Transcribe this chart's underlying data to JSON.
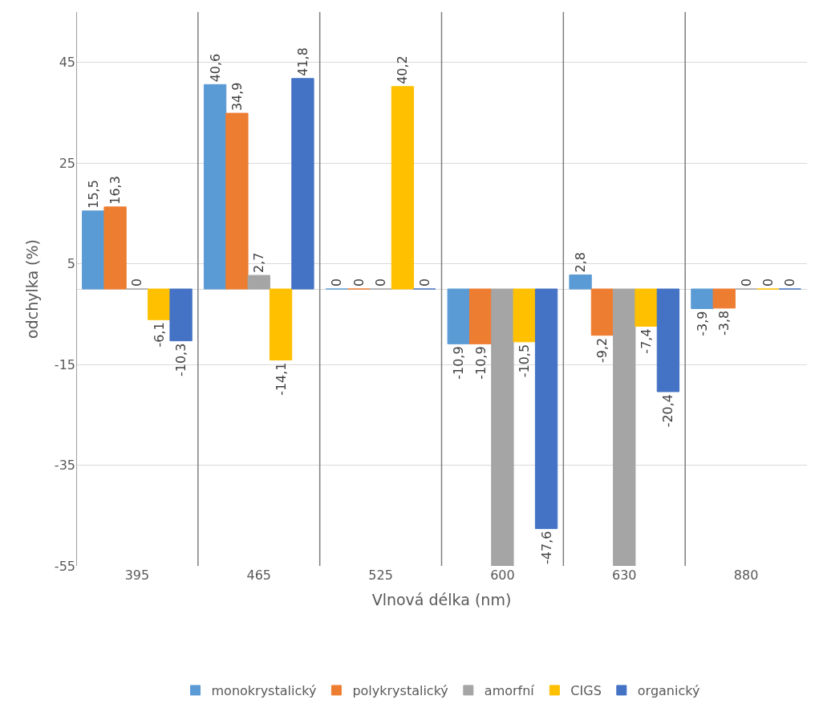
{
  "chart_data": {
    "type": "bar",
    "xlabel": "Vlnová délka (nm)",
    "ylabel": "odchylka (%)",
    "categories": [
      "395",
      "465",
      "525",
      "600",
      "630",
      "880"
    ],
    "series": [
      {
        "name": "monokrystalický",
        "color": "#5b9bd5",
        "values": [
          15.5,
          40.6,
          0,
          -10.9,
          2.8,
          -3.9
        ],
        "value_labels": [
          "15,5",
          "40,6",
          "0",
          "-10,9",
          "2,8",
          "-3,9"
        ]
      },
      {
        "name": "polykrystalický",
        "color": "#ed7d31",
        "values": [
          16.3,
          34.9,
          0,
          -10.9,
          -9.2,
          -3.8
        ],
        "value_labels": [
          "16,3",
          "34,9",
          "0",
          "-10,9",
          "-9,2",
          "-3,8"
        ]
      },
      {
        "name": "amorfní",
        "color": "#a5a5a5",
        "values": [
          0,
          2.7,
          0,
          -55,
          -55,
          0
        ],
        "value_labels": [
          "0",
          "2,7",
          "0",
          null,
          null,
          "0"
        ]
      },
      {
        "name": "CIGS",
        "color": "#ffc000",
        "values": [
          -6.1,
          -14.1,
          40.2,
          -10.5,
          -7.4,
          0
        ],
        "value_labels": [
          "-6,1",
          "-14,1",
          "40,2",
          "-10,5",
          "-7,4",
          "0"
        ]
      },
      {
        "name": "organický",
        "color": "#4472c4",
        "values": [
          -10.3,
          41.8,
          0,
          -47.6,
          -20.4,
          0
        ],
        "value_labels": [
          "-10,3",
          "41,8",
          "0",
          "-47,6",
          "-20,4",
          "0"
        ]
      }
    ],
    "ylim": [
      -55,
      55
    ],
    "yticks": [
      -55,
      -35,
      -15,
      5,
      25,
      45
    ],
    "grid": true,
    "legend": "bottom"
  }
}
